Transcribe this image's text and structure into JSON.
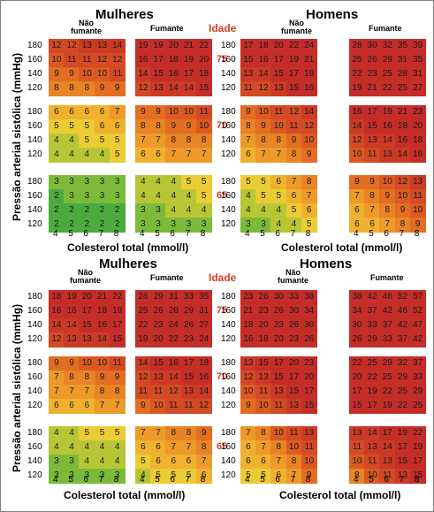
{
  "chart_data": {
    "type": "heatmap",
    "age_header": "Idade",
    "x_axis_label": "Colesterol total (mmol/l)",
    "y_axis_label": "Pressão arterial sistólica (mmHg)",
    "cholesterol_ticks": [
      "4",
      "5",
      "6",
      "7",
      "8"
    ],
    "pressure_ticks": [
      "180",
      "160",
      "140",
      "120"
    ],
    "sections": [
      {
        "sex_labels": [
          "Mulheres",
          "Homens"
        ],
        "column_labels": {
          "nonsmoker": "Não fumante",
          "smoker": "Fumante"
        },
        "ages": [
          "75",
          "70",
          "65"
        ],
        "panels": [
          {
            "sex": "Mulheres",
            "group": "Não fumante",
            "age": "75",
            "values": [
              [
                12,
                12,
                13,
                13,
                14
              ],
              [
                10,
                11,
                11,
                12,
                12
              ],
              [
                9,
                9,
                10,
                10,
                11
              ],
              [
                8,
                8,
                8,
                9,
                9
              ]
            ]
          },
          {
            "sex": "Mulheres",
            "group": "Fumante",
            "age": "75",
            "values": [
              [
                19,
                19,
                20,
                21,
                22
              ],
              [
                16,
                17,
                18,
                19,
                20
              ],
              [
                14,
                15,
                16,
                17,
                18
              ],
              [
                12,
                13,
                14,
                14,
                15
              ]
            ]
          },
          {
            "sex": "Homens",
            "group": "Não fumante",
            "age": "75",
            "values": [
              [
                17,
                18,
                20,
                22,
                24
              ],
              [
                15,
                16,
                17,
                19,
                21
              ],
              [
                13,
                14,
                15,
                17,
                19
              ],
              [
                11,
                12,
                13,
                15,
                16
              ]
            ]
          },
          {
            "sex": "Homens",
            "group": "Fumante",
            "age": "75",
            "values": [
              [
                28,
                30,
                32,
                35,
                39
              ],
              [
                25,
                26,
                29,
                31,
                35
              ],
              [
                22,
                23,
                25,
                28,
                31
              ],
              [
                19,
                21,
                22,
                25,
                27
              ]
            ]
          },
          {
            "sex": "Mulheres",
            "group": "Não fumante",
            "age": "70",
            "values": [
              [
                6,
                6,
                6,
                6,
                7
              ],
              [
                5,
                5,
                5,
                6,
                6
              ],
              [
                4,
                4,
                5,
                5,
                5
              ],
              [
                4,
                4,
                4,
                4,
                5
              ]
            ]
          },
          {
            "sex": "Mulheres",
            "group": "Fumante",
            "age": "70",
            "values": [
              [
                9,
                9,
                10,
                10,
                11
              ],
              [
                8,
                8,
                9,
                9,
                10
              ],
              [
                7,
                7,
                8,
                8,
                8
              ],
              [
                6,
                6,
                7,
                7,
                7
              ]
            ]
          },
          {
            "sex": "Homens",
            "group": "Não fumante",
            "age": "70",
            "values": [
              [
                9,
                10,
                11,
                12,
                14
              ],
              [
                8,
                9,
                10,
                11,
                12
              ],
              [
                7,
                8,
                8,
                9,
                10
              ],
              [
                6,
                7,
                7,
                8,
                9
              ]
            ]
          },
          {
            "sex": "Homens",
            "group": "Fumante",
            "age": "70",
            "values": [
              [
                16,
                17,
                19,
                21,
                23
              ],
              [
                14,
                15,
                16,
                18,
                20
              ],
              [
                12,
                13,
                14,
                16,
                18
              ],
              [
                10,
                11,
                13,
                14,
                16
              ]
            ]
          },
          {
            "sex": "Mulheres",
            "group": "Não fumante",
            "age": "65",
            "values": [
              [
                3,
                3,
                3,
                3,
                3
              ],
              [
                2,
                3,
                3,
                3,
                3
              ],
              [
                2,
                2,
                2,
                2,
                2
              ],
              [
                2,
                2,
                2,
                2,
                2
              ]
            ]
          },
          {
            "sex": "Mulheres",
            "group": "Fumante",
            "age": "65",
            "values": [
              [
                4,
                4,
                4,
                5,
                5
              ],
              [
                4,
                4,
                4,
                4,
                5
              ],
              [
                3,
                3,
                4,
                4,
                4
              ],
              [
                3,
                3,
                3,
                3,
                3
              ]
            ]
          },
          {
            "sex": "Homens",
            "group": "Não fumante",
            "age": "65",
            "values": [
              [
                5,
                5,
                6,
                7,
                8
              ],
              [
                4,
                5,
                5,
                6,
                7
              ],
              [
                4,
                4,
                4,
                5,
                6
              ],
              [
                3,
                3,
                4,
                4,
                5
              ]
            ]
          },
          {
            "sex": "Homens",
            "group": "Fumante",
            "age": "65",
            "values": [
              [
                9,
                9,
                10,
                12,
                13
              ],
              [
                7,
                8,
                9,
                10,
                11
              ],
              [
                6,
                7,
                8,
                9,
                10
              ],
              [
                6,
                6,
                7,
                8,
                9
              ]
            ]
          }
        ]
      },
      {
        "sex_labels": [
          "Mulheres",
          "Homens"
        ],
        "column_labels": {
          "nonsmoker": "Não fumante",
          "smoker": "Fumante"
        },
        "ages": [
          "75",
          "70",
          "65"
        ],
        "panels": [
          {
            "sex": "Mulheres",
            "group": "Não fumante",
            "age": "75",
            "values": [
              [
                18,
                19,
                20,
                21,
                22
              ],
              [
                16,
                16,
                17,
                18,
                19
              ],
              [
                14,
                14,
                15,
                16,
                17
              ],
              [
                12,
                13,
                13,
                14,
                15
              ]
            ]
          },
          {
            "sex": "Mulheres",
            "group": "Fumante",
            "age": "75",
            "values": [
              [
                28,
                29,
                31,
                33,
                35
              ],
              [
                25,
                26,
                28,
                29,
                31
              ],
              [
                22,
                23,
                24,
                26,
                27
              ],
              [
                19,
                20,
                22,
                23,
                24
              ]
            ]
          },
          {
            "sex": "Homens",
            "group": "Não fumante",
            "age": "75",
            "values": [
              [
                23,
                26,
                30,
                33,
                38
              ],
              [
                21,
                23,
                26,
                30,
                34
              ],
              [
                18,
                20,
                23,
                26,
                30
              ],
              [
                16,
                18,
                20,
                23,
                26
              ]
            ]
          },
          {
            "sex": "Homens",
            "group": "Fumante",
            "age": "75",
            "values": [
              [
                38,
                42,
                46,
                52,
                57
              ],
              [
                34,
                37,
                42,
                46,
                52
              ],
              [
                30,
                33,
                37,
                42,
                47
              ],
              [
                26,
                29,
                33,
                37,
                42
              ]
            ]
          },
          {
            "sex": "Mulheres",
            "group": "Não fumante",
            "age": "70",
            "values": [
              [
                9,
                9,
                10,
                10,
                11
              ],
              [
                7,
                8,
                8,
                9,
                9
              ],
              [
                7,
                7,
                7,
                8,
                8
              ],
              [
                6,
                6,
                6,
                7,
                7
              ]
            ]
          },
          {
            "sex": "Mulheres",
            "group": "Fumante",
            "age": "70",
            "values": [
              [
                14,
                15,
                16,
                17,
                18
              ],
              [
                12,
                13,
                14,
                15,
                16
              ],
              [
                11,
                11,
                12,
                13,
                14
              ],
              [
                9,
                10,
                11,
                11,
                12
              ]
            ]
          },
          {
            "sex": "Homens",
            "group": "Não fumante",
            "age": "70",
            "values": [
              [
                13,
                15,
                17,
                20,
                23
              ],
              [
                12,
                13,
                15,
                17,
                20
              ],
              [
                10,
                11,
                13,
                15,
                17
              ],
              [
                9,
                10,
                11,
                13,
                15
              ]
            ]
          },
          {
            "sex": "Homens",
            "group": "Fumante",
            "age": "70",
            "values": [
              [
                22,
                25,
                29,
                32,
                37
              ],
              [
                20,
                22,
                25,
                29,
                33
              ],
              [
                17,
                19,
                22,
                25,
                29
              ],
              [
                15,
                17,
                19,
                22,
                25
              ]
            ]
          },
          {
            "sex": "Mulheres",
            "group": "Não fumante",
            "age": "65",
            "values": [
              [
                4,
                4,
                5,
                5,
                5
              ],
              [
                4,
                4,
                4,
                4,
                4
              ],
              [
                3,
                3,
                4,
                4,
                4
              ],
              [
                3,
                3,
                3,
                3,
                3
              ]
            ]
          },
          {
            "sex": "Mulheres",
            "group": "Fumante",
            "age": "65",
            "values": [
              [
                7,
                7,
                8,
                8,
                9
              ],
              [
                6,
                6,
                7,
                7,
                8
              ],
              [
                5,
                6,
                6,
                6,
                7
              ],
              [
                4,
                5,
                5,
                5,
                6
              ]
            ]
          },
          {
            "sex": "Homens",
            "group": "Não fumante",
            "age": "65",
            "values": [
              [
                7,
                8,
                10,
                11,
                13
              ],
              [
                6,
                7,
                8,
                10,
                11
              ],
              [
                6,
                6,
                7,
                8,
                10
              ],
              [
                5,
                5,
                6,
                7,
                9
              ]
            ]
          },
          {
            "sex": "Homens",
            "group": "Fumante",
            "age": "65",
            "values": [
              [
                13,
                14,
                17,
                19,
                22
              ],
              [
                11,
                13,
                14,
                17,
                19
              ],
              [
                10,
                11,
                13,
                15,
                17
              ],
              [
                8,
                10,
                11,
                13,
                15
              ]
            ]
          }
        ]
      }
    ]
  }
}
